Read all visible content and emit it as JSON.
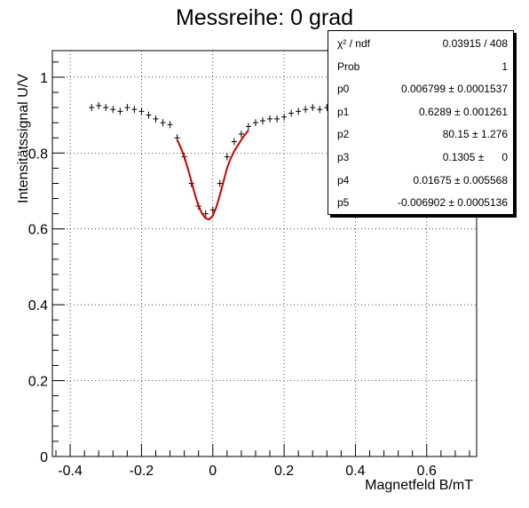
{
  "chart_data": {
    "type": "scatter",
    "title": "Messreihe: 0 grad",
    "xlabel": "Magnetfeld B/mT",
    "ylabel": "Intensitätssignal U/V",
    "xlim": [
      -0.45,
      0.74
    ],
    "ylim": [
      0,
      1.07
    ],
    "x_ticks": [
      -0.4,
      -0.2,
      0,
      0.2,
      0.4,
      0.6
    ],
    "x_tick_labels": [
      "-0.4",
      "-0.2",
      "0",
      "0.2",
      "0.4",
      "0.6"
    ],
    "y_ticks": [
      0,
      0.2,
      0.4,
      0.6,
      0.8,
      1
    ],
    "y_tick_labels": [
      "0",
      "0.2",
      "0.4",
      "0.6",
      "0.8",
      "1"
    ],
    "grid": true,
    "legend": "top-right",
    "series": [
      {
        "kind": "data",
        "color": "#000000",
        "x": [
          -0.34,
          -0.32,
          -0.3,
          -0.28,
          -0.26,
          -0.24,
          -0.22,
          -0.2,
          -0.18,
          -0.16,
          -0.14,
          -0.12,
          -0.1,
          -0.08,
          -0.06,
          -0.04,
          -0.02,
          0.0,
          0.02,
          0.04,
          0.06,
          0.08,
          0.1,
          0.12,
          0.14,
          0.16,
          0.18,
          0.2,
          0.22,
          0.24,
          0.26,
          0.28,
          0.3,
          0.32,
          0.34
        ],
        "y": [
          0.92,
          0.925,
          0.92,
          0.915,
          0.91,
          0.92,
          0.915,
          0.91,
          0.9,
          0.89,
          0.88,
          0.875,
          0.84,
          0.79,
          0.72,
          0.66,
          0.64,
          0.65,
          0.72,
          0.79,
          0.83,
          0.85,
          0.87,
          0.88,
          0.885,
          0.89,
          0.89,
          0.895,
          0.905,
          0.91,
          0.915,
          0.92,
          0.915,
          0.92,
          0.92
        ]
      },
      {
        "kind": "fit",
        "color": "#cc0000",
        "x": [
          -0.1,
          -0.09,
          -0.08,
          -0.07,
          -0.06,
          -0.05,
          -0.04,
          -0.03,
          -0.02,
          -0.01,
          0.0,
          0.01,
          0.02,
          0.03,
          0.04,
          0.05,
          0.06,
          0.07,
          0.08,
          0.09,
          0.1
        ],
        "y": [
          0.835,
          0.815,
          0.79,
          0.76,
          0.725,
          0.69,
          0.66,
          0.64,
          0.628,
          0.625,
          0.635,
          0.658,
          0.69,
          0.725,
          0.76,
          0.785,
          0.805,
          0.82,
          0.835,
          0.848,
          0.86
        ]
      }
    ],
    "stats_box": [
      {
        "label": "χ² / ndf",
        "value": "0.03915 / 408"
      },
      {
        "label": "Prob",
        "value": "1"
      },
      {
        "label": "p0",
        "value": "0.006799 ± 0.0001537"
      },
      {
        "label": "p1",
        "value": "0.6289 ± 0.001261"
      },
      {
        "label": "p2",
        "value": "80.15 ± 1.276"
      },
      {
        "label": "p3",
        "value": "0.1305 ±      0"
      },
      {
        "label": "p4",
        "value": "0.01675 ± 0.005568"
      },
      {
        "label": "p5",
        "value": "-0.006902 ± 0.0005136"
      }
    ]
  }
}
